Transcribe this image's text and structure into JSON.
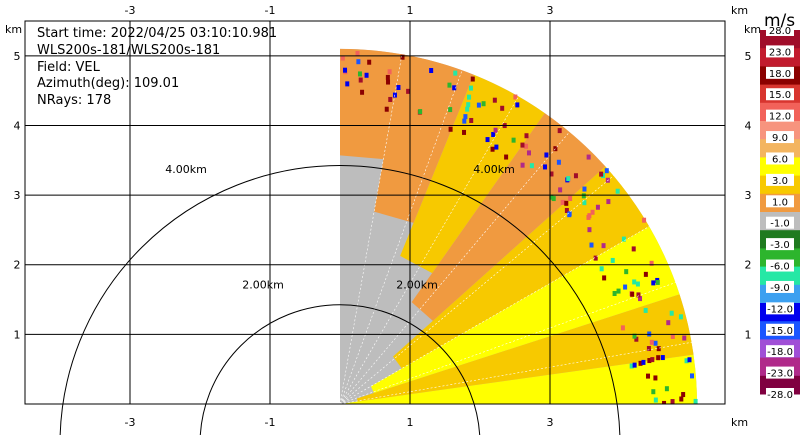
{
  "header": {
    "start_time": "Start time: 2022/04/25 03:10:10.981",
    "site": "WLS200s-181/WLS200s-181",
    "field": "Field: VEL",
    "azimuth": "Azimuth(deg): 109.01",
    "nrays": "NRays: 178"
  },
  "chart_data": {
    "type": "heatmap",
    "plot_kind": "radar RHI sector (lidar radial velocity)",
    "x_unit_label": "km",
    "y_unit_label": "km",
    "xlim": [
      -4.5,
      5.5
    ],
    "ylim": [
      0,
      5.5
    ],
    "x_ticks": [
      -3,
      -1,
      1,
      3
    ],
    "y_ticks": [
      1,
      2,
      3,
      4,
      5
    ],
    "x_tick_labels": [
      "-3",
      "-1",
      "1",
      "3"
    ],
    "y_tick_labels": [
      "1",
      "2",
      "3",
      "4",
      "5"
    ],
    "grid": true,
    "range_rings": [
      {
        "label": "2.00km",
        "radius_km": 2.0
      },
      {
        "label": "4.00km",
        "radius_km": 4.0
      }
    ],
    "sector": {
      "radar_x_km": 0.0,
      "max_range_km": 5.1,
      "elevation_deg": [
        0,
        90
      ]
    },
    "colorbar": {
      "title": "m/s",
      "ticks": [
        "28.0",
        "23.0",
        "18.0",
        "15.0",
        "12.0",
        "9.0",
        "6.0",
        "3.0",
        "1.0",
        "-1.0",
        "-3.0",
        "-6.0",
        "-9.0",
        "-12.0",
        "-15.0",
        "-18.0",
        "-23.0",
        "-28.0"
      ],
      "colors": [
        "#a00d2a",
        "#c21b2e",
        "#8b0000",
        "#d8352f",
        "#f2625a",
        "#f7947e",
        "#f3b560",
        "#ffff00",
        "#f7c900",
        "#f09a40",
        "#bdbdbd",
        "#1f7a1f",
        "#2db52d",
        "#25e8a5",
        "#3ca0f0",
        "#0000ee",
        "#1a55ff",
        "#a04fd6",
        "#b02a8a",
        "#800040"
      ]
    }
  }
}
